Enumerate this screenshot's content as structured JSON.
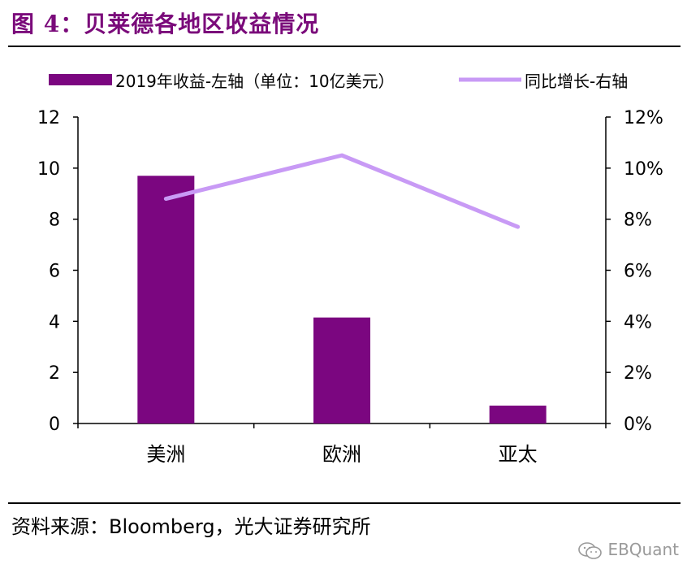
{
  "title": "图 4：贝莱德各地区收益情况",
  "source": "资料来源：Bloomberg，光大证券研究所",
  "watermark": "EBQuant",
  "colors": {
    "bar": "#7b0680",
    "line": "#c89af5",
    "title": "#7a0a7a"
  },
  "chart_data": {
    "type": "bar",
    "categories": [
      "美洲",
      "欧洲",
      "亚太"
    ],
    "series": [
      {
        "name": "2019年收益-左轴（单位：10亿美元）",
        "type": "bar",
        "axis": "left",
        "values": [
          9.7,
          4.15,
          0.7
        ]
      },
      {
        "name": "同比增长-右轴",
        "type": "line",
        "axis": "right",
        "values": [
          8.8,
          10.5,
          7.7
        ]
      }
    ],
    "left_axis": {
      "min": 0,
      "max": 12,
      "ticks": [
        "0",
        "2",
        "4",
        "6",
        "8",
        "10",
        "12"
      ]
    },
    "right_axis": {
      "min": 0,
      "max": 12,
      "ticks": [
        "0%",
        "2%",
        "4%",
        "6%",
        "8%",
        "10%",
        "12%"
      ]
    },
    "legend_position": "top"
  }
}
